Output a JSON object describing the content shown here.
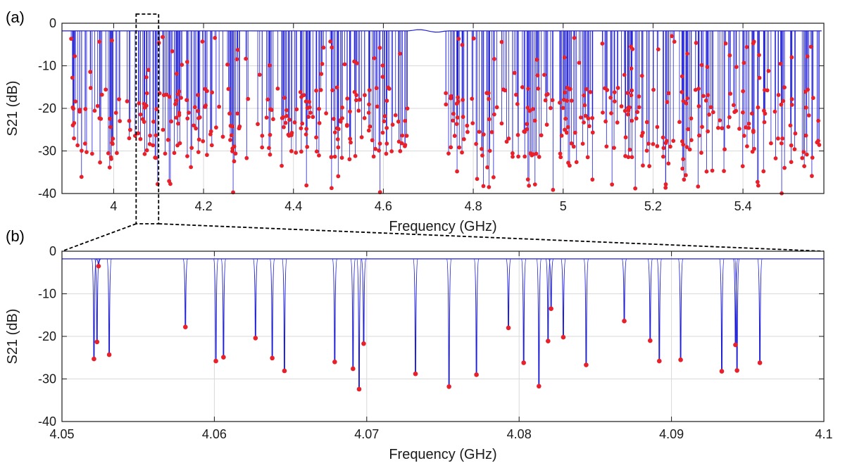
{
  "chart_data": [
    {
      "panel": "(a)",
      "type": "line",
      "xlabel": "Frequency  (GHz)",
      "ylabel": "S21  (dB)",
      "xlim": [
        3.885,
        5.58
      ],
      "ylim": [
        -40,
        0
      ],
      "xticks": [
        4,
        4.2,
        4.4,
        4.6,
        4.8,
        5,
        5.2,
        5.4
      ],
      "xtick_labels": [
        "4",
        "4.2",
        "4.4",
        "4.6",
        "4.8",
        "5",
        "5.2",
        "5.4"
      ],
      "yticks": [
        0,
        -10,
        -20,
        -30,
        -40
      ],
      "ytick_labels": [
        "0",
        "-10",
        "-20",
        "-30",
        "-40"
      ],
      "baseline_db": -1.8,
      "series_color": "#1f1fd6",
      "marker_color": "#e8202a",
      "resonance_bands": [
        [
          3.905,
          4.655
        ],
        [
          4.738,
          5.075
        ],
        [
          5.085,
          5.57
        ]
      ],
      "resonance_count_estimate": 600,
      "dip_depth_range_db": [
        -40,
        -3
      ],
      "zoom_box": {
        "xlim": [
          4.05,
          4.1
        ]
      }
    },
    {
      "panel": "(b)",
      "type": "line",
      "xlabel": "Frequency  (GHz)",
      "ylabel": "S21  (dB)",
      "xlim": [
        4.05,
        4.1
      ],
      "ylim": [
        -40,
        0
      ],
      "xticks": [
        4.05,
        4.06,
        4.07,
        4.08,
        4.09,
        4.1
      ],
      "xtick_labels": [
        "4.05",
        "4.06",
        "4.07",
        "4.08",
        "4.09",
        "4.1"
      ],
      "yticks": [
        0,
        -10,
        -20,
        -30,
        -40
      ],
      "ytick_labels": [
        "0",
        "-10",
        "-20",
        "-30",
        "-40"
      ],
      "baseline_db": -1.8,
      "series_color": "#1f1fd6",
      "marker_color": "#e8202a",
      "resonances": [
        {
          "f": 4.0521,
          "db": -25.3
        },
        {
          "f": 4.0523,
          "db": -21.3
        },
        {
          "f": 4.0524,
          "db": -3.5
        },
        {
          "f": 4.0531,
          "db": -24.3
        },
        {
          "f": 4.0581,
          "db": -17.8
        },
        {
          "f": 4.0601,
          "db": -25.8
        },
        {
          "f": 4.0606,
          "db": -24.9
        },
        {
          "f": 4.0627,
          "db": -20.4
        },
        {
          "f": 4.0638,
          "db": -25.1
        },
        {
          "f": 4.0646,
          "db": -28.1
        },
        {
          "f": 4.0679,
          "db": -26.0
        },
        {
          "f": 4.0691,
          "db": -27.6
        },
        {
          "f": 4.0695,
          "db": -32.4
        },
        {
          "f": 4.0698,
          "db": -21.7
        },
        {
          "f": 4.0732,
          "db": -28.8
        },
        {
          "f": 4.0754,
          "db": -31.8
        },
        {
          "f": 4.0772,
          "db": -29.0
        },
        {
          "f": 4.0793,
          "db": -18.0
        },
        {
          "f": 4.0803,
          "db": -26.2
        },
        {
          "f": 4.0813,
          "db": -31.7
        },
        {
          "f": 4.0819,
          "db": -21.1
        },
        {
          "f": 4.0821,
          "db": -13.5
        },
        {
          "f": 4.0829,
          "db": -20.2
        },
        {
          "f": 4.0844,
          "db": -26.7
        },
        {
          "f": 4.0869,
          "db": -16.4
        },
        {
          "f": 4.0886,
          "db": -21.0
        },
        {
          "f": 4.0892,
          "db": -25.8
        },
        {
          "f": 4.0906,
          "db": -25.5
        },
        {
          "f": 4.0933,
          "db": -28.2
        },
        {
          "f": 4.0942,
          "db": -22.0
        },
        {
          "f": 4.0943,
          "db": -28.0
        },
        {
          "f": 4.0958,
          "db": -26.2
        }
      ]
    }
  ]
}
